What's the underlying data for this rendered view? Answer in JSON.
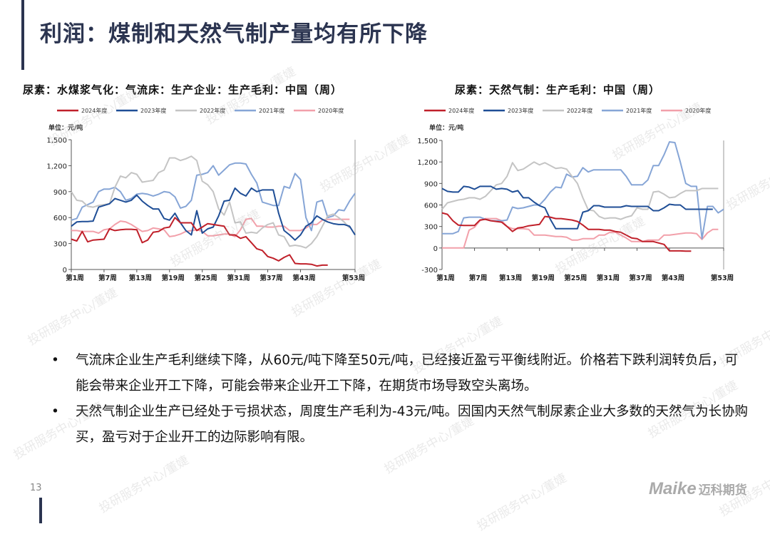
{
  "title": "利润：煤制和天然气制产量均有所下降",
  "page_number": "13",
  "logo": {
    "brand": "Maike",
    "cn": "迈科期货"
  },
  "watermark": "投研服务中心/董婕",
  "bullets": [
    "气流床企业生产毛利继续下降，从60元/吨下降至50元/吨，已经接近盈亏平衡线附近。价格若下跌利润转负后，可能会带来企业开工下降，可能会带来企业开工下降，在期货市场导致空头离场。",
    "天然气制企业生产已经处于亏损状态，周度生产毛利为-43元/吨。因国内天然气制尿素企业大多数的天然气为长协购买，盈亏对于企业开工的边际影响有限。"
  ],
  "chart_data": [
    {
      "type": "line",
      "title": "尿素：水煤浆气化：气流床：生产企业：生产毛利：中国（周）",
      "unit": "单位：元/吨",
      "ylim": [
        0,
        1500
      ],
      "yticks": [
        0,
        300,
        600,
        900,
        1200,
        1500
      ],
      "ytick_labels": [
        "0",
        "300",
        "600",
        "900",
        "1,200",
        "1,500"
      ],
      "xlim": [
        1,
        53
      ],
      "xticks": [
        1,
        7,
        13,
        19,
        25,
        31,
        37,
        43,
        53
      ],
      "xtick_labels": [
        "第1周",
        "第7周",
        "第13周",
        "第19周",
        "第25周",
        "第31周",
        "第37周",
        "第43周",
        "第53周"
      ],
      "legend": "top",
      "series": [
        {
          "name": "2024年度",
          "color": "#c0202a",
          "values": [
            350,
            330,
            440,
            320,
            340,
            345,
            350,
            470,
            450,
            460,
            465,
            465,
            460,
            310,
            340,
            430,
            440,
            480,
            490,
            600,
            540,
            540,
            540,
            450,
            490,
            530,
            520,
            510,
            500,
            400,
            400,
            360,
            380,
            310,
            240,
            220,
            150,
            130,
            100,
            140,
            170,
            70,
            65,
            65,
            60,
            40,
            50,
            50
          ]
        },
        {
          "name": "2023年度",
          "color": "#1f4e96",
          "values": [
            500,
            550,
            555,
            555,
            560,
            720,
            740,
            760,
            820,
            800,
            780,
            800,
            860,
            790,
            740,
            700,
            700,
            590,
            570,
            650,
            540,
            450,
            400,
            680,
            420,
            470,
            490,
            620,
            790,
            800,
            940,
            880,
            850,
            940,
            900,
            920,
            920,
            920,
            650,
            450,
            400,
            340,
            400,
            500,
            540,
            620,
            580,
            550,
            530,
            520,
            520,
            500,
            400
          ]
        },
        {
          "name": "2022年度",
          "color": "#c4c4c4",
          "values": [
            900,
            800,
            790,
            730,
            720,
            740,
            750,
            760,
            950,
            1080,
            1060,
            1120,
            1100,
            1010,
            1020,
            1030,
            1120,
            1150,
            1290,
            1290,
            1260,
            1280,
            1310,
            1260,
            1020,
            980,
            900,
            700,
            630,
            780,
            540,
            550,
            420,
            430,
            420,
            480,
            520,
            540,
            400,
            380,
            270,
            280,
            270,
            250,
            300,
            380,
            500,
            620,
            640,
            600,
            550,
            480
          ]
        },
        {
          "name": "2021年度",
          "color": "#86a5d6",
          "values": [
            570,
            590,
            720,
            750,
            780,
            900,
            930,
            930,
            950,
            900,
            800,
            820,
            870,
            880,
            870,
            850,
            870,
            900,
            890,
            840,
            710,
            730,
            800,
            1090,
            1100,
            1120,
            1200,
            1090,
            1150,
            1210,
            1230,
            1230,
            1220,
            1100,
            1000,
            780,
            760,
            740,
            740,
            960,
            940,
            1110,
            1040,
            600,
            450,
            780,
            800,
            600,
            620,
            690,
            680,
            790,
            880
          ]
        },
        {
          "name": "2020年度",
          "color": "#f2a0aa",
          "values": [
            450,
            450,
            440,
            440,
            440,
            420,
            460,
            470,
            520,
            560,
            550,
            520,
            480,
            440,
            450,
            480,
            470,
            460,
            380,
            390,
            410,
            440,
            450,
            460,
            440,
            390,
            390,
            400,
            410,
            410,
            380,
            460,
            580,
            590,
            500,
            500,
            490,
            490,
            500,
            500,
            450,
            450,
            450,
            480,
            520,
            520,
            570,
            580,
            580,
            580,
            580,
            580
          ]
        }
      ]
    },
    {
      "type": "line",
      "title": "尿素：天然气制：生产毛利：中国（周）",
      "unit": "单位：元/吨",
      "ylim": [
        -300,
        1500
      ],
      "yticks": [
        -300,
        0,
        300,
        600,
        900,
        1200,
        1500
      ],
      "ytick_labels": [
        "-300",
        "0",
        "300",
        "600",
        "900",
        "1,200",
        "1,500"
      ],
      "xlim": [
        1,
        53
      ],
      "xticks": [
        1,
        7,
        13,
        19,
        25,
        31,
        37,
        43,
        53
      ],
      "xtick_labels": [
        "第1周",
        "第7周",
        "第13周",
        "第19周",
        "第25周",
        "第31周",
        "第37周",
        "第43周",
        "第53周"
      ],
      "legend": "top",
      "series": [
        {
          "name": "2024年度",
          "color": "#c0202a",
          "values": [
            490,
            470,
            380,
            320,
            315,
            315,
            315,
            390,
            400,
            380,
            370,
            360,
            300,
            230,
            280,
            290,
            310,
            320,
            330,
            440,
            430,
            410,
            410,
            400,
            390,
            370,
            320,
            260,
            260,
            260,
            250,
            250,
            230,
            220,
            180,
            140,
            130,
            90,
            90,
            90,
            70,
            50,
            -40,
            -40,
            -40,
            -43,
            -43
          ]
        },
        {
          "name": "2023年度",
          "color": "#1f4e96",
          "values": [
            830,
            790,
            780,
            780,
            860,
            850,
            820,
            860,
            860,
            860,
            820,
            830,
            820,
            780,
            800,
            700,
            700,
            640,
            590,
            560,
            400,
            270,
            270,
            270,
            270,
            270,
            500,
            520,
            590,
            590,
            570,
            570,
            570,
            570,
            590,
            580,
            580,
            580,
            580,
            520,
            520,
            560,
            610,
            600,
            600,
            540,
            540,
            540,
            540,
            540,
            540
          ]
        },
        {
          "name": "2022年度",
          "color": "#c4c4c4",
          "values": [
            540,
            630,
            650,
            670,
            680,
            700,
            700,
            680,
            720,
            800,
            880,
            900,
            1000,
            1190,
            1080,
            1100,
            1150,
            1200,
            1160,
            1190,
            1150,
            1110,
            1120,
            1100,
            1000,
            900,
            700,
            530,
            520,
            440,
            410,
            420,
            420,
            400,
            430,
            450,
            560,
            540,
            540,
            780,
            790,
            750,
            700,
            710,
            760,
            800,
            800,
            800,
            830,
            830,
            830,
            830
          ]
        },
        {
          "name": "2021年度",
          "color": "#86a5d6",
          "values": [
            200,
            200,
            200,
            230,
            420,
            430,
            430,
            430,
            400,
            380,
            380,
            380,
            390,
            570,
            550,
            560,
            580,
            600,
            600,
            680,
            780,
            850,
            840,
            1030,
            990,
            1000,
            1120,
            1060,
            1090,
            1090,
            1090,
            1090,
            1090,
            1090,
            1000,
            880,
            880,
            880,
            950,
            1150,
            1150,
            1300,
            1480,
            1470,
            1200,
            900,
            860,
            860,
            130,
            580,
            580,
            490,
            540
          ]
        },
        {
          "name": "2020年度",
          "color": "#f2a0aa",
          "values": [
            0,
            0,
            0,
            0,
            0,
            250,
            290,
            380,
            410,
            410,
            410,
            380,
            300,
            270,
            270,
            270,
            260,
            180,
            180,
            180,
            170,
            160,
            160,
            150,
            110,
            110,
            130,
            130,
            130,
            180,
            180,
            220,
            220,
            180,
            140,
            90,
            90,
            90,
            110,
            110,
            110,
            180,
            180,
            190,
            200,
            210,
            210,
            200,
            120,
            210,
            260,
            260
          ]
        }
      ]
    }
  ]
}
